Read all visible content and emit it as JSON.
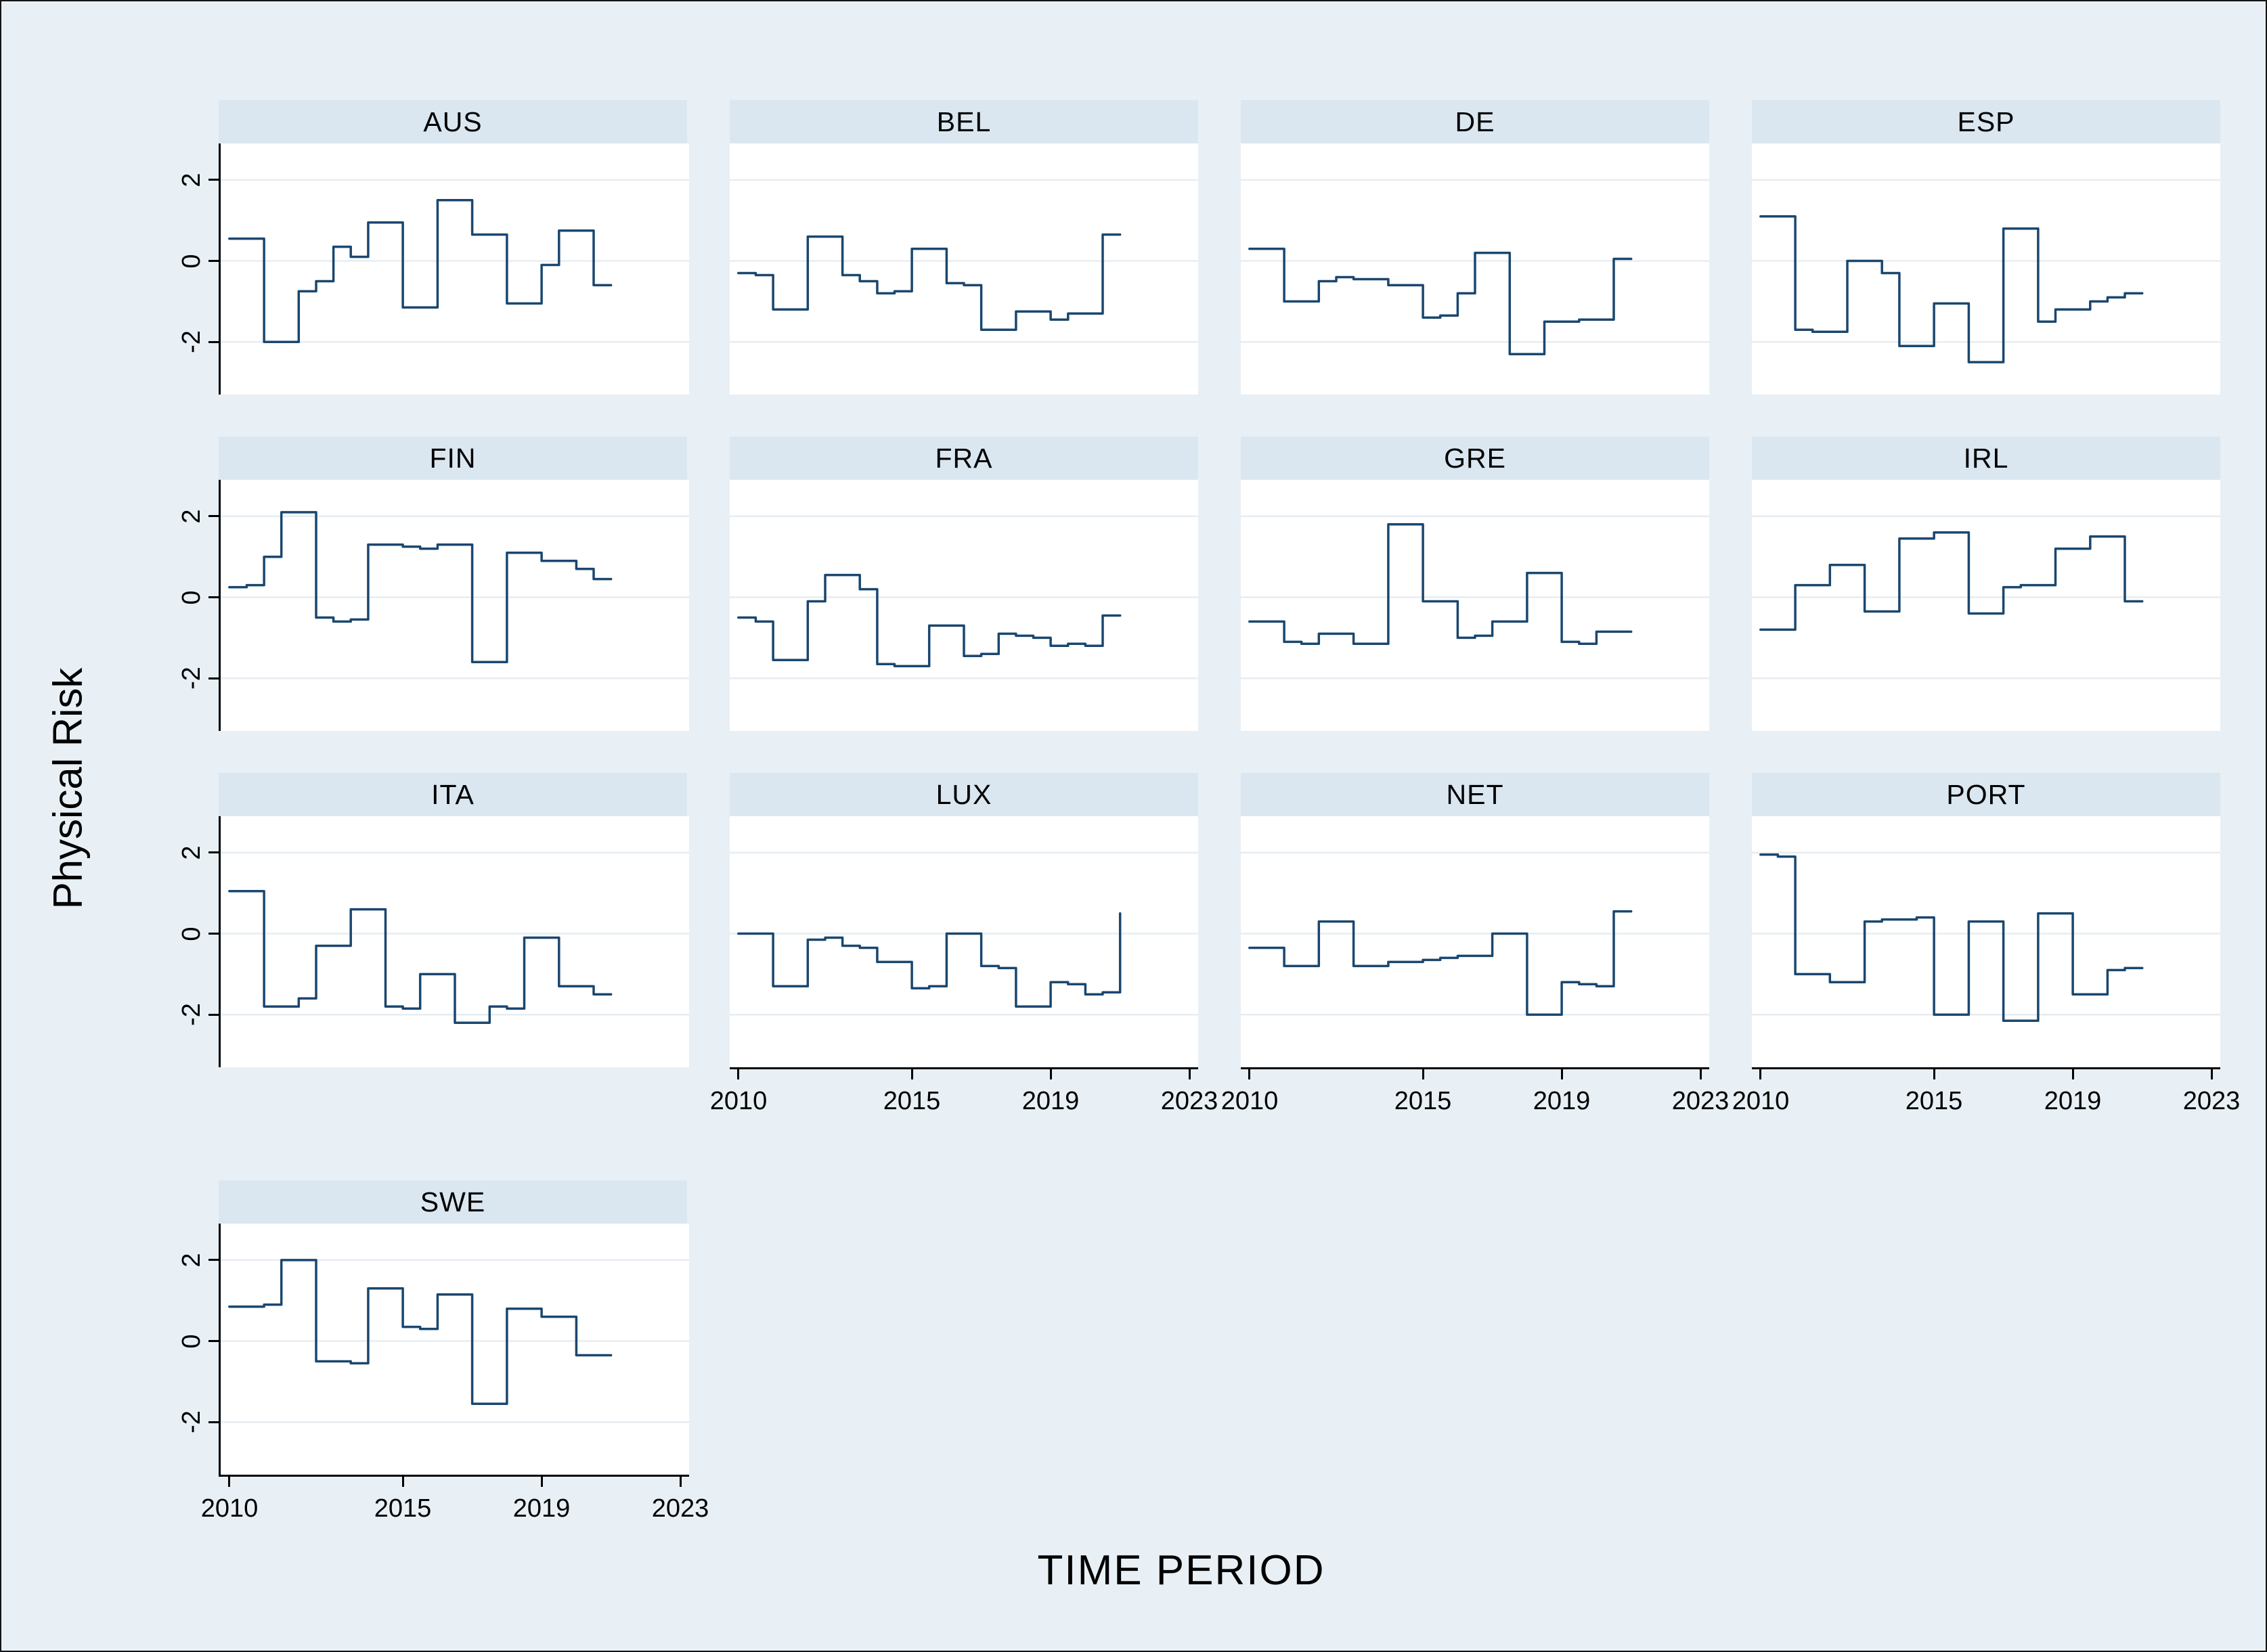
{
  "figure": {
    "ylabel": "Physical Risk",
    "xlabel": "TIME PERIOD",
    "y_ticks": [
      {
        "value": 2,
        "label": "2"
      },
      {
        "value": 0,
        "label": "0"
      },
      {
        "value": -2,
        "label": "-2"
      }
    ],
    "x_ticks": [
      {
        "value": 2010,
        "label": "2010"
      },
      {
        "value": 2015,
        "label": "2015"
      },
      {
        "value": 2019,
        "label": "2019"
      },
      {
        "value": 2023,
        "label": "2023"
      }
    ],
    "colors": {
      "background": "#e8f0f5",
      "header": "#dbe7f0",
      "grid": "#e6edf2",
      "line": "#1a476f"
    }
  },
  "chart_data": {
    "type": "line",
    "title": "",
    "xlabel": "TIME PERIOD",
    "ylabel": "Physical Risk",
    "x_start": 2010,
    "x_step": 0.5,
    "xlim": [
      2009.75,
      2023.25
    ],
    "ylim": [
      -3.3,
      2.9
    ],
    "grid": true,
    "legend": false,
    "panels": [
      {
        "label": "AUS",
        "values": [
          0.55,
          0.55,
          -2.0,
          -2.0,
          -0.75,
          -0.5,
          0.35,
          0.1,
          0.95,
          0.95,
          -1.15,
          -1.15,
          1.5,
          1.5,
          0.65,
          0.65,
          -1.05,
          -1.05,
          -0.1,
          0.75,
          0.75,
          -0.6,
          -0.6
        ]
      },
      {
        "label": "BEL",
        "values": [
          -0.3,
          -0.35,
          -1.2,
          -1.2,
          0.6,
          0.6,
          -0.35,
          -0.5,
          -0.8,
          -0.75,
          0.3,
          0.3,
          -0.55,
          -0.6,
          -1.7,
          -1.7,
          -1.25,
          -1.25,
          -1.45,
          -1.3,
          -1.3,
          0.65,
          0.65
        ]
      },
      {
        "label": "DE",
        "values": [
          0.3,
          0.3,
          -1.0,
          -1.0,
          -0.5,
          -0.4,
          -0.45,
          -0.45,
          -0.6,
          -0.6,
          -1.4,
          -1.35,
          -0.8,
          0.2,
          0.2,
          -2.3,
          -2.3,
          -1.5,
          -1.5,
          -1.45,
          -1.45,
          0.05,
          0.05
        ]
      },
      {
        "label": "ESP",
        "values": [
          1.1,
          1.1,
          -1.7,
          -1.75,
          -1.75,
          0.0,
          0.0,
          -0.3,
          -2.1,
          -2.1,
          -1.05,
          -1.05,
          -2.5,
          -2.5,
          0.8,
          0.8,
          -1.5,
          -1.2,
          -1.2,
          -1.0,
          -0.9,
          -0.8,
          -0.8
        ]
      },
      {
        "label": "FIN",
        "values": [
          0.25,
          0.3,
          1.0,
          2.1,
          2.1,
          -0.5,
          -0.6,
          -0.55,
          1.3,
          1.3,
          1.25,
          1.2,
          1.3,
          1.3,
          -1.6,
          -1.6,
          1.1,
          1.1,
          0.9,
          0.9,
          0.7,
          0.45,
          0.45
        ]
      },
      {
        "label": "FRA",
        "values": [
          -0.5,
          -0.6,
          -1.55,
          -1.55,
          -0.1,
          0.55,
          0.55,
          0.2,
          -1.65,
          -1.7,
          -1.7,
          -0.7,
          -0.7,
          -1.45,
          -1.4,
          -0.9,
          -0.95,
          -1.0,
          -1.2,
          -1.15,
          -1.2,
          -0.45,
          -0.45
        ]
      },
      {
        "label": "GRE",
        "values": [
          -0.6,
          -0.6,
          -1.1,
          -1.15,
          -0.9,
          -0.9,
          -1.15,
          -1.15,
          1.8,
          1.8,
          -0.1,
          -0.1,
          -1.0,
          -0.95,
          -0.6,
          -0.6,
          0.6,
          0.6,
          -1.1,
          -1.15,
          -0.85,
          -0.85,
          -0.85
        ]
      },
      {
        "label": "IRL",
        "values": [
          -0.8,
          -0.8,
          0.3,
          0.3,
          0.8,
          0.8,
          -0.35,
          -0.35,
          1.45,
          1.45,
          1.6,
          1.6,
          -0.4,
          -0.4,
          0.25,
          0.3,
          0.3,
          1.2,
          1.2,
          1.5,
          1.5,
          -0.1,
          -0.1
        ]
      },
      {
        "label": "ITA",
        "values": [
          1.05,
          1.05,
          -1.8,
          -1.8,
          -1.6,
          -0.3,
          -0.3,
          0.6,
          0.6,
          -1.8,
          -1.85,
          -1.0,
          -1.0,
          -2.2,
          -2.2,
          -1.8,
          -1.85,
          -0.1,
          -0.1,
          -1.3,
          -1.3,
          -1.5,
          -1.5
        ]
      },
      {
        "label": "LUX",
        "values": [
          0.0,
          0.0,
          -1.3,
          -1.3,
          -0.15,
          -0.1,
          -0.3,
          -0.35,
          -0.7,
          -0.7,
          -1.35,
          -1.3,
          0.0,
          0.0,
          -0.8,
          -0.85,
          -1.8,
          -1.8,
          -1.2,
          -1.25,
          -1.5,
          -1.45,
          0.5
        ]
      },
      {
        "label": "NET",
        "values": [
          -0.35,
          -0.35,
          -0.8,
          -0.8,
          0.3,
          0.3,
          -0.8,
          -0.8,
          -0.7,
          -0.7,
          -0.65,
          -0.6,
          -0.55,
          -0.55,
          0.0,
          0.0,
          -2.0,
          -2.0,
          -1.2,
          -1.25,
          -1.3,
          0.55,
          0.55
        ]
      },
      {
        "label": "PORT",
        "values": [
          1.95,
          1.9,
          -1.0,
          -1.0,
          -1.2,
          -1.2,
          0.3,
          0.35,
          0.35,
          0.4,
          -2.0,
          -2.0,
          0.3,
          0.3,
          -2.15,
          -2.15,
          0.5,
          0.5,
          -1.5,
          -1.5,
          -0.9,
          -0.85,
          -0.85
        ]
      },
      {
        "label": "SWE",
        "values": [
          0.85,
          0.85,
          0.9,
          2.0,
          2.0,
          -0.5,
          -0.5,
          -0.55,
          1.3,
          1.3,
          0.35,
          0.3,
          1.15,
          1.15,
          -1.55,
          -1.55,
          0.8,
          0.8,
          0.6,
          0.6,
          -0.35,
          -0.35,
          -0.35
        ]
      }
    ]
  }
}
